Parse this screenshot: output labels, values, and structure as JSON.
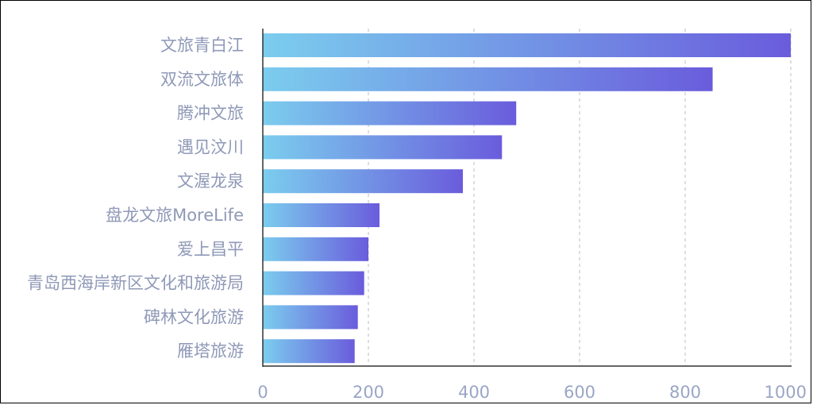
{
  "chart_data": {
    "type": "bar",
    "orientation": "horizontal",
    "categories": [
      "文旅青白江",
      "双流文旅体",
      "腾冲文旅",
      "遇见汶川",
      "文渥龙泉",
      "盘龙文旅MoreLife",
      "爱上昌平",
      "青岛西海岸新区文化和旅游局",
      "碑林文化旅游",
      "雁塔旅游"
    ],
    "values": [
      1000,
      852,
      480,
      453,
      379,
      221,
      200,
      192,
      180,
      174
    ],
    "xlim": [
      0,
      1000
    ],
    "xticks": [
      "0",
      "200",
      "400",
      "600",
      "800",
      "1000"
    ],
    "grid": "vertical-dashed",
    "colors": {
      "gradient_start": "#7bcdee",
      "gradient_end": "#6a5cdc",
      "axis": "#333333",
      "grid": "#cfd3dc",
      "label": "#8f99b7"
    }
  }
}
